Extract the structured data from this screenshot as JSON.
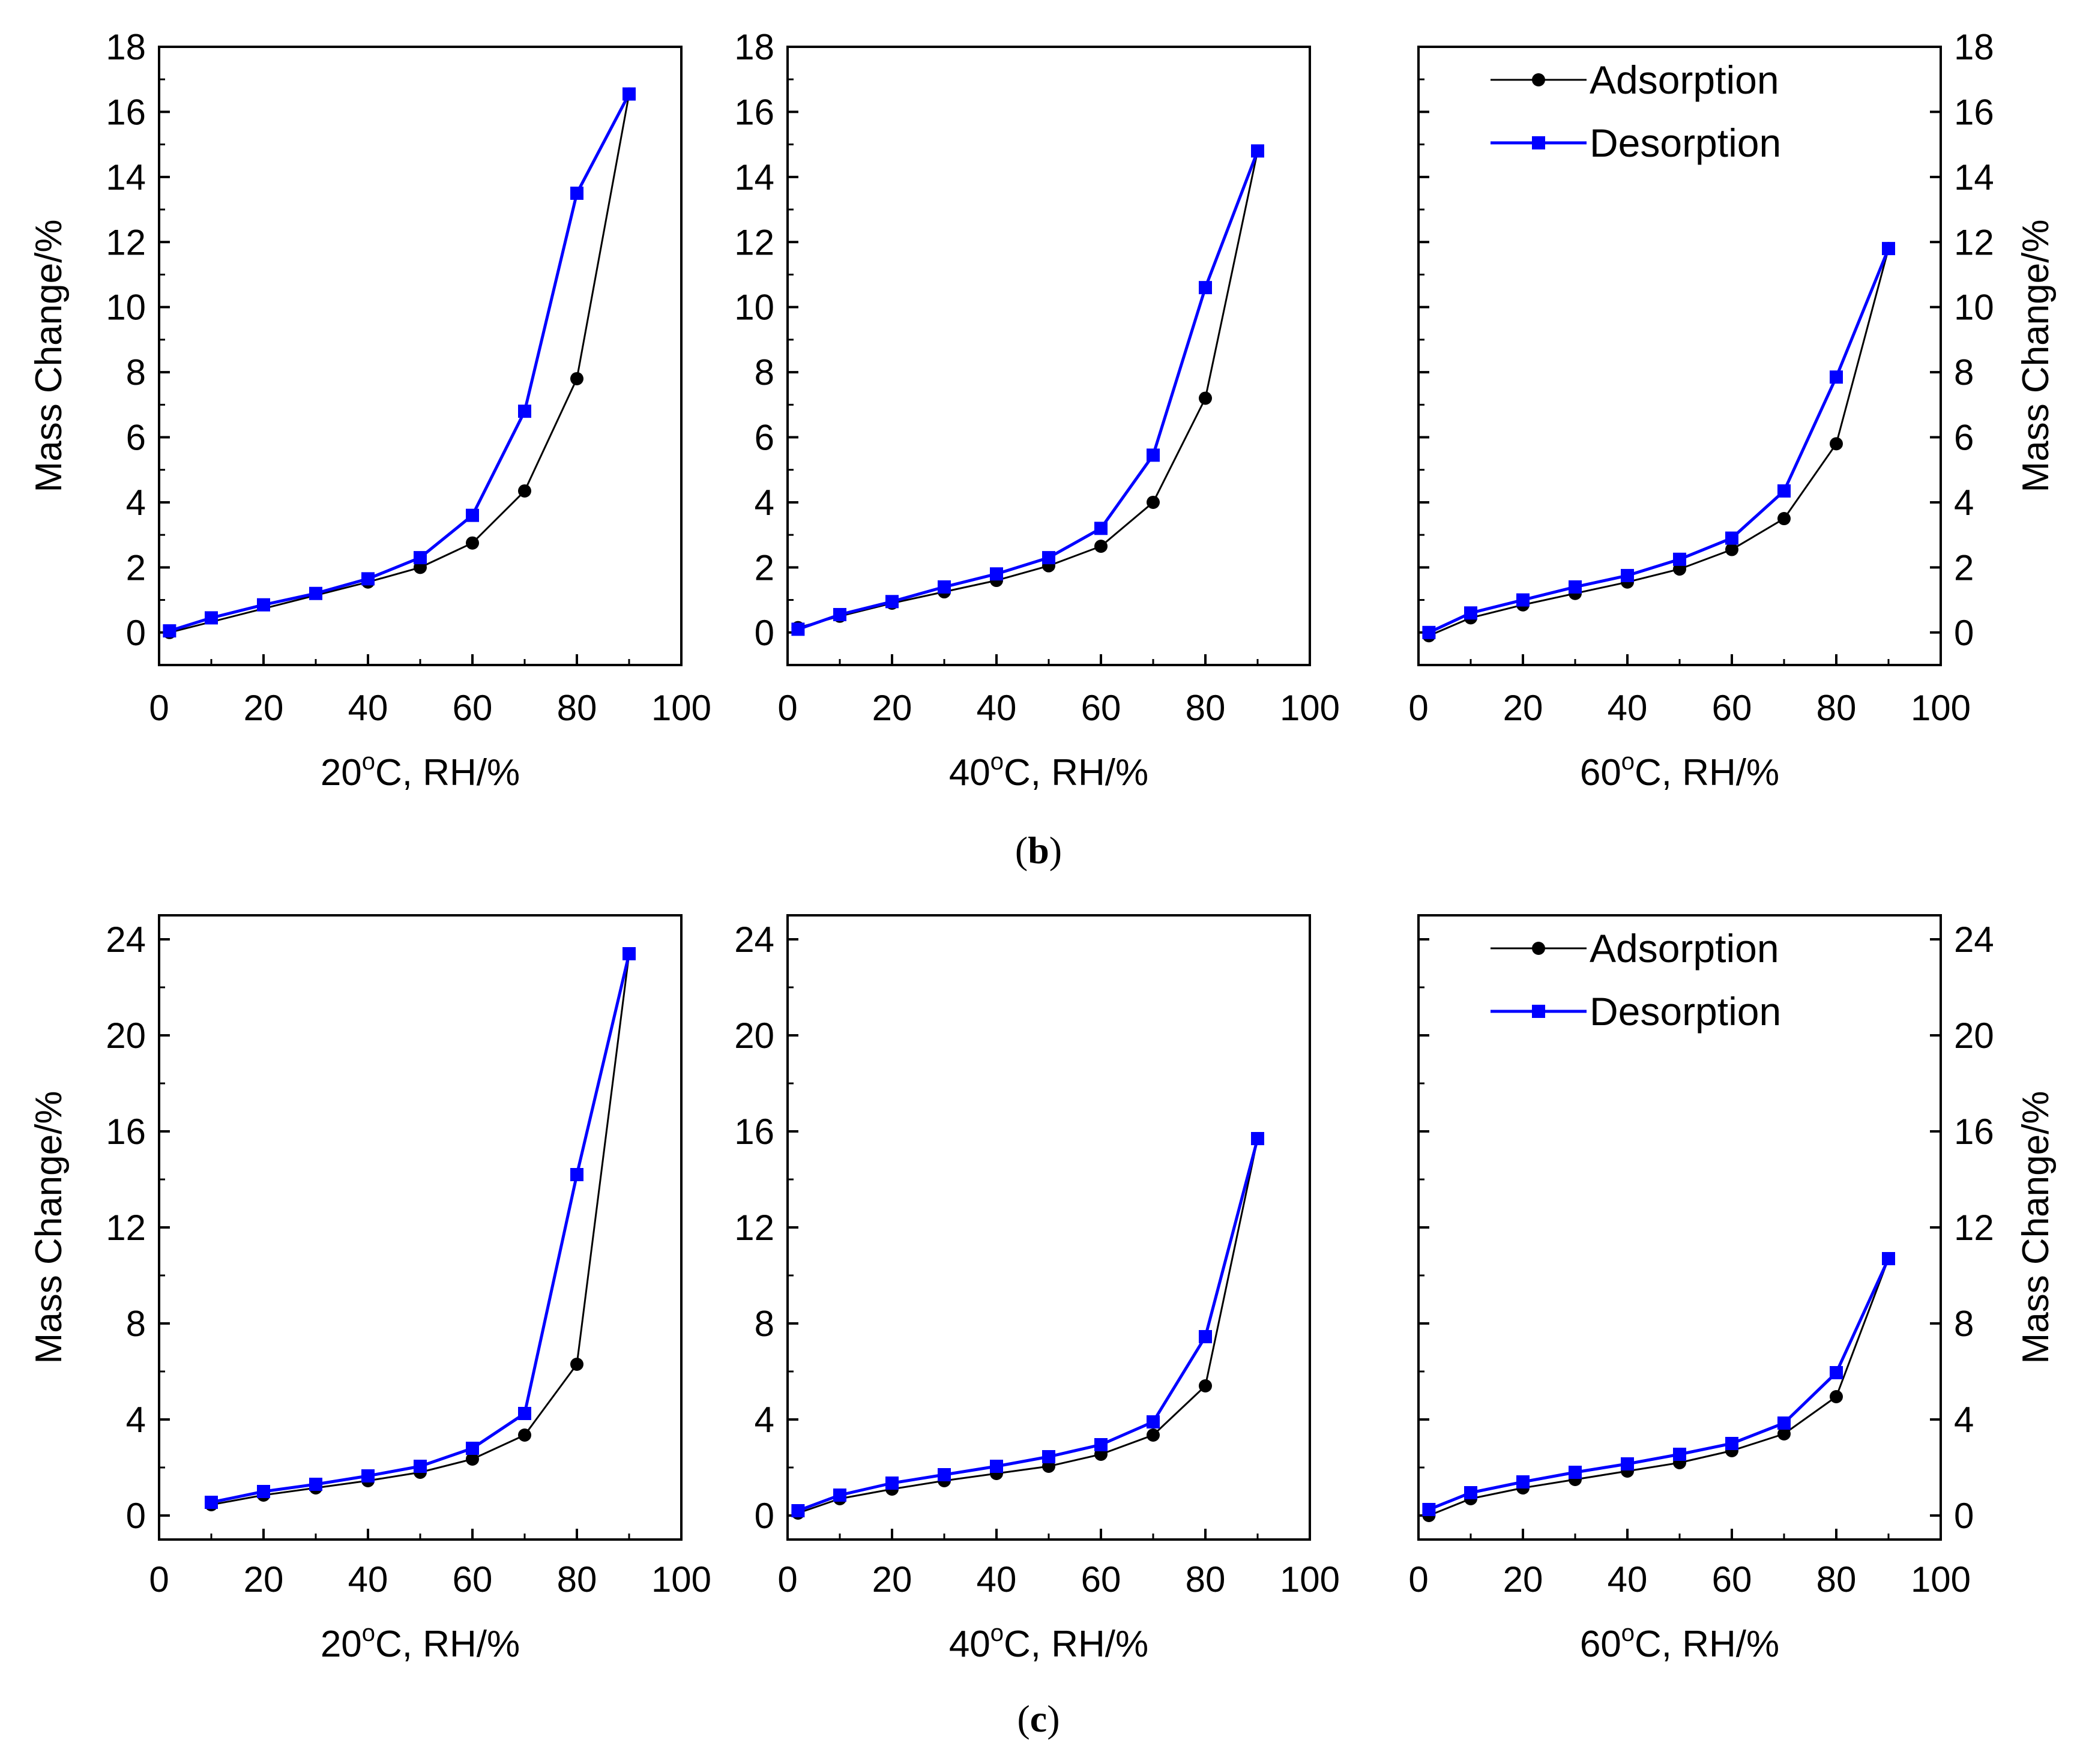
{
  "figure": {
    "colors": {
      "adsorption": "#000000",
      "desorption": "#0000ff",
      "axis": "#000000",
      "background": "#ffffff"
    },
    "legend": {
      "placement": "top-right of the right-hand panel in each row",
      "adsorption_label": "Adsorption",
      "desorption_label": "Desorption"
    },
    "rows": [
      {
        "label_open": "(",
        "label_letter": "b",
        "label_close": ")",
        "y_axis_title": "Mass Change/%",
        "chart_data": [
          {
            "type": "line",
            "x_title_prefix": "20",
            "x_title_degree": "o",
            "x_title_suffix": "C, RH/%",
            "xlim": [
              0,
              100
            ],
            "ylim": [
              -1,
              18
            ],
            "x_ticks": [
              0,
              20,
              40,
              60,
              80,
              100
            ],
            "y_ticks": [
              0,
              2,
              4,
              6,
              8,
              10,
              12,
              14,
              16,
              18
            ],
            "series": [
              {
                "name": "Adsorption",
                "x": [
                  2,
                  40,
                  50,
                  60,
                  70,
                  80,
                  90
                ],
                "values": [
                  0.0,
                  1.55,
                  2.0,
                  2.75,
                  4.35,
                  7.8,
                  16.55
                ]
              },
              {
                "name": "Desorption",
                "x": [
                  90,
                  80,
                  70,
                  60,
                  50,
                  40,
                  30,
                  20,
                  10,
                  2
                ],
                "values": [
                  16.55,
                  13.5,
                  6.8,
                  3.6,
                  2.3,
                  1.65,
                  1.2,
                  0.85,
                  0.45,
                  0.05
                ]
              }
            ]
          },
          {
            "type": "line",
            "x_title_prefix": "40",
            "x_title_degree": "o",
            "x_title_suffix": "C, RH/%",
            "xlim": [
              0,
              100
            ],
            "ylim": [
              -1,
              18
            ],
            "x_ticks": [
              0,
              20,
              40,
              60,
              80,
              100
            ],
            "y_ticks": [
              0,
              2,
              4,
              6,
              8,
              10,
              12,
              14,
              16,
              18
            ],
            "series": [
              {
                "name": "Adsorption",
                "x": [
                  2,
                  10,
                  20,
                  30,
                  40,
                  50,
                  60,
                  70,
                  80,
                  90
                ],
                "values": [
                  0.15,
                  0.5,
                  0.9,
                  1.25,
                  1.6,
                  2.05,
                  2.65,
                  4.0,
                  7.2,
                  14.8
                ]
              },
              {
                "name": "Desorption",
                "x": [
                  90,
                  80,
                  70,
                  60,
                  50,
                  40,
                  30,
                  20,
                  10,
                  2
                ],
                "values": [
                  14.8,
                  10.6,
                  5.45,
                  3.2,
                  2.3,
                  1.8,
                  1.4,
                  0.95,
                  0.55,
                  0.1
                ]
              }
            ]
          },
          {
            "type": "line",
            "x_title_prefix": "60",
            "x_title_degree": "o",
            "x_title_suffix": "C, RH/%",
            "xlim": [
              0,
              100
            ],
            "ylim": [
              -1,
              18
            ],
            "x_ticks": [
              0,
              20,
              40,
              60,
              80,
              100
            ],
            "y_ticks": [
              0,
              2,
              4,
              6,
              8,
              10,
              12,
              14,
              16,
              18
            ],
            "series": [
              {
                "name": "Adsorption",
                "x": [
                  2,
                  10,
                  20,
                  30,
                  40,
                  50,
                  60,
                  70,
                  80,
                  90
                ],
                "values": [
                  -0.1,
                  0.45,
                  0.85,
                  1.2,
                  1.55,
                  1.95,
                  2.55,
                  3.5,
                  5.8,
                  11.8
                ]
              },
              {
                "name": "Desorption",
                "x": [
                  90,
                  80,
                  70,
                  60,
                  50,
                  40,
                  30,
                  20,
                  10,
                  2
                ],
                "values": [
                  11.8,
                  7.85,
                  4.35,
                  2.9,
                  2.25,
                  1.75,
                  1.4,
                  1.0,
                  0.6,
                  0.0
                ]
              }
            ]
          }
        ]
      },
      {
        "label_open": "(",
        "label_letter": "c",
        "label_close": ")",
        "y_axis_title": "Mass Change/%",
        "chart_data": [
          {
            "type": "line",
            "x_title_prefix": "20",
            "x_title_degree": "o",
            "x_title_suffix": "C, RH/%",
            "xlim": [
              0,
              100
            ],
            "ylim": [
              -1,
              25
            ],
            "x_ticks": [
              0,
              20,
              40,
              60,
              80,
              100
            ],
            "y_ticks": [
              0,
              4,
              8,
              12,
              16,
              20,
              24
            ],
            "series": [
              {
                "name": "Adsorption",
                "x": [
                  10,
                  20,
                  30,
                  40,
                  50,
                  60,
                  70,
                  80,
                  90
                ],
                "values": [
                  0.45,
                  0.85,
                  1.15,
                  1.45,
                  1.8,
                  2.35,
                  3.35,
                  6.3,
                  23.4
                ]
              },
              {
                "name": "Desorption",
                "x": [
                  90,
                  80,
                  70,
                  60,
                  50,
                  40,
                  30,
                  20,
                  10
                ],
                "values": [
                  23.4,
                  14.2,
                  4.25,
                  2.8,
                  2.05,
                  1.65,
                  1.3,
                  1.0,
                  0.55
                ]
              }
            ]
          },
          {
            "type": "line",
            "x_title_prefix": "40",
            "x_title_degree": "o",
            "x_title_suffix": "C, RH/%",
            "xlim": [
              0,
              100
            ],
            "ylim": [
              -1,
              25
            ],
            "x_ticks": [
              0,
              20,
              40,
              60,
              80,
              100
            ],
            "y_ticks": [
              0,
              4,
              8,
              12,
              16,
              20,
              24
            ],
            "series": [
              {
                "name": "Adsorption",
                "x": [
                  2,
                  10,
                  20,
                  30,
                  40,
                  50,
                  60,
                  70,
                  80,
                  90
                ],
                "values": [
                  0.1,
                  0.7,
                  1.1,
                  1.45,
                  1.75,
                  2.05,
                  2.55,
                  3.35,
                  5.4,
                  15.7
                ]
              },
              {
                "name": "Desorption",
                "x": [
                  90,
                  80,
                  70,
                  60,
                  50,
                  40,
                  30,
                  20,
                  10,
                  2
                ],
                "values": [
                  15.7,
                  7.45,
                  3.9,
                  2.95,
                  2.45,
                  2.05,
                  1.7,
                  1.35,
                  0.85,
                  0.2
                ]
              }
            ]
          },
          {
            "type": "line",
            "x_title_prefix": "60",
            "x_title_degree": "o",
            "x_title_suffix": "C, RH/%",
            "xlim": [
              0,
              100
            ],
            "ylim": [
              -1,
              25
            ],
            "x_ticks": [
              0,
              20,
              40,
              60,
              80,
              100
            ],
            "y_ticks": [
              0,
              4,
              8,
              12,
              16,
              20,
              24
            ],
            "series": [
              {
                "name": "Adsorption",
                "x": [
                  2,
                  10,
                  20,
                  30,
                  40,
                  50,
                  60,
                  70,
                  80,
                  90
                ],
                "values": [
                  0.0,
                  0.7,
                  1.15,
                  1.5,
                  1.85,
                  2.2,
                  2.7,
                  3.4,
                  4.95,
                  10.7
                ]
              },
              {
                "name": "Desorption",
                "x": [
                  90,
                  80,
                  70,
                  60,
                  50,
                  40,
                  30,
                  20,
                  10,
                  2
                ],
                "values": [
                  10.7,
                  5.95,
                  3.85,
                  3.0,
                  2.55,
                  2.15,
                  1.8,
                  1.4,
                  0.95,
                  0.25
                ]
              }
            ]
          }
        ]
      }
    ]
  }
}
